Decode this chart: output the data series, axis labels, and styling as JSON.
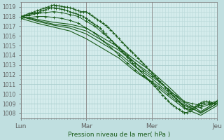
{
  "background_color": "#c0dfe0",
  "plot_bg_color": "#d4ecec",
  "grid_minor_color": "#b8d8d8",
  "grid_major_color": "#a8cccc",
  "line_color": "#1a5c1a",
  "xlabel": "Pression niveau de la mer( hPa )",
  "xlim": [
    0,
    72
  ],
  "ylim": [
    1007.5,
    1019.5
  ],
  "yticks": [
    1008,
    1009,
    1010,
    1011,
    1012,
    1013,
    1014,
    1015,
    1016,
    1017,
    1018,
    1019
  ],
  "xtick_positions": [
    0,
    24,
    48,
    72
  ],
  "xtick_labels": [
    "Lun",
    "Mar",
    "Mer",
    "Jeu"
  ],
  "series": [
    {
      "x": [
        0,
        1,
        2,
        3,
        4,
        5,
        6,
        7,
        8,
        9,
        10,
        11,
        12,
        13,
        14,
        15,
        16,
        17,
        18,
        19,
        20,
        21,
        22,
        23,
        24,
        25,
        26,
        27,
        28,
        29,
        30,
        31,
        32,
        33,
        34,
        35,
        36,
        37,
        38,
        39,
        40,
        41,
        42,
        43,
        44,
        45,
        46,
        47,
        48,
        49,
        50,
        51,
        52,
        53,
        54,
        55,
        56,
        57,
        58,
        59,
        60,
        61,
        62,
        63,
        64,
        65,
        66,
        67,
        68,
        69,
        70,
        71,
        72
      ],
      "y": [
        1018.0,
        1018.1,
        1018.2,
        1018.3,
        1018.4,
        1018.5,
        1018.6,
        1018.7,
        1018.8,
        1018.9,
        1019.0,
        1019.1,
        1019.2,
        1019.15,
        1019.1,
        1019.05,
        1019.0,
        1018.95,
        1018.9,
        1018.8,
        1018.7,
        1018.6,
        1018.5,
        1018.5,
        1018.5,
        1018.3,
        1018.1,
        1017.9,
        1017.7,
        1017.5,
        1017.3,
        1017.1,
        1016.9,
        1016.6,
        1016.3,
        1016.0,
        1015.7,
        1015.4,
        1015.1,
        1014.8,
        1014.5,
        1014.3,
        1014.0,
        1013.7,
        1013.4,
        1013.1,
        1012.8,
        1012.5,
        1012.2,
        1011.9,
        1011.6,
        1011.3,
        1011.0,
        1010.7,
        1010.4,
        1010.1,
        1009.8,
        1009.5,
        1009.2,
        1008.9,
        1008.6,
        1008.5,
        1008.4,
        1008.5,
        1008.7,
        1008.9,
        1009.1,
        1009.2,
        1009.2,
        1009.1,
        1009.0,
        1009.0,
        1009.0
      ],
      "style": "marker"
    },
    {
      "x": [
        0,
        1,
        2,
        3,
        4,
        5,
        6,
        7,
        8,
        9,
        10,
        11,
        12,
        13,
        14,
        15,
        16,
        17,
        18,
        19,
        20,
        21,
        22,
        23,
        24,
        25,
        26,
        27,
        28,
        29,
        30,
        31,
        32,
        33,
        34,
        35,
        36,
        37,
        38,
        39,
        40,
        41,
        42,
        43,
        44,
        45,
        46,
        47,
        48,
        49,
        50,
        51,
        52,
        53,
        54,
        55,
        56,
        57,
        58,
        59,
        60,
        61,
        62,
        63,
        64,
        65,
        66,
        67,
        68,
        69,
        70,
        71,
        72
      ],
      "y": [
        1018.0,
        1018.0,
        1018.1,
        1018.2,
        1018.3,
        1018.3,
        1018.4,
        1018.5,
        1018.6,
        1018.7,
        1018.8,
        1018.9,
        1018.9,
        1018.85,
        1018.8,
        1018.75,
        1018.7,
        1018.6,
        1018.5,
        1018.4,
        1018.3,
        1018.2,
        1018.1,
        1018.0,
        1017.8,
        1017.6,
        1017.4,
        1017.2,
        1017.0,
        1016.8,
        1016.5,
        1016.2,
        1015.9,
        1015.6,
        1015.3,
        1015.0,
        1014.7,
        1014.4,
        1014.1,
        1013.8,
        1013.5,
        1013.2,
        1012.9,
        1012.6,
        1012.3,
        1012.0,
        1011.7,
        1011.4,
        1011.1,
        1010.8,
        1010.5,
        1010.2,
        1009.9,
        1009.6,
        1009.3,
        1009.0,
        1008.8,
        1008.6,
        1008.4,
        1008.2,
        1008.1,
        1008.1,
        1008.2,
        1008.4,
        1008.6,
        1008.8,
        1009.0,
        1009.1,
        1009.2,
        1009.2,
        1009.1,
        1009.0,
        1009.0
      ],
      "style": "marker"
    },
    {
      "x": [
        0,
        6,
        12,
        18,
        24,
        30,
        36,
        42,
        48,
        54,
        60,
        66,
        72
      ],
      "y": [
        1018.0,
        1017.6,
        1017.2,
        1017.0,
        1016.5,
        1015.5,
        1014.5,
        1013.2,
        1012.0,
        1010.5,
        1009.0,
        1008.0,
        1009.0
      ],
      "style": "line"
    },
    {
      "x": [
        0,
        6,
        12,
        18,
        24,
        30,
        36,
        42,
        48,
        54,
        60,
        66,
        72
      ],
      "y": [
        1018.0,
        1017.7,
        1017.4,
        1017.2,
        1016.8,
        1015.8,
        1014.8,
        1013.5,
        1012.3,
        1010.8,
        1009.2,
        1008.2,
        1009.2
      ],
      "style": "line"
    },
    {
      "x": [
        0,
        6,
        12,
        18,
        24,
        30,
        36,
        42,
        48,
        54,
        60,
        66,
        72
      ],
      "y": [
        1018.0,
        1017.5,
        1017.1,
        1016.8,
        1016.2,
        1015.2,
        1014.2,
        1012.8,
        1011.6,
        1010.2,
        1008.8,
        1008.1,
        1009.0
      ],
      "style": "line"
    },
    {
      "x": [
        0,
        6,
        12,
        18,
        24,
        30,
        36,
        42,
        48,
        54,
        60,
        66,
        72
      ],
      "y": [
        1017.8,
        1017.3,
        1016.9,
        1016.5,
        1015.7,
        1014.7,
        1013.7,
        1012.3,
        1011.2,
        1009.8,
        1008.5,
        1007.8,
        1008.8
      ],
      "style": "line"
    },
    {
      "x": [
        0,
        3,
        6,
        9,
        12,
        15,
        18,
        21,
        24,
        27,
        30,
        33,
        36,
        39,
        42,
        45,
        48,
        51,
        54,
        57,
        60,
        63,
        66,
        69,
        72
      ],
      "y": [
        1018.0,
        1018.1,
        1018.3,
        1018.4,
        1018.5,
        1018.4,
        1018.2,
        1018.0,
        1017.5,
        1017.0,
        1016.3,
        1015.6,
        1014.8,
        1014.0,
        1013.2,
        1012.4,
        1011.8,
        1011.2,
        1010.5,
        1009.8,
        1009.2,
        1009.0,
        1008.8,
        1009.0,
        1009.3
      ],
      "style": "marker"
    },
    {
      "x": [
        0,
        3,
        6,
        9,
        12,
        15,
        18,
        21,
        24,
        27,
        30,
        33,
        36,
        39,
        42,
        45,
        48,
        51,
        54,
        57,
        60,
        63,
        66,
        69,
        72
      ],
      "y": [
        1017.8,
        1017.9,
        1018.0,
        1018.0,
        1017.9,
        1017.8,
        1017.6,
        1017.3,
        1016.8,
        1016.3,
        1015.5,
        1014.8,
        1014.0,
        1013.2,
        1012.5,
        1011.8,
        1011.3,
        1010.7,
        1010.0,
        1009.3,
        1008.8,
        1008.7,
        1008.6,
        1008.9,
        1009.2
      ],
      "style": "marker"
    }
  ]
}
